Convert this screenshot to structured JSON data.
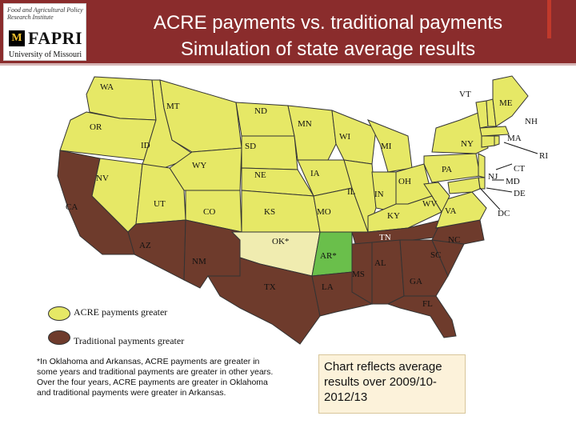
{
  "header": {
    "logo": {
      "institute": "Food and Agricultural Policy Research Institute",
      "mark": "M",
      "name": "FAPRI",
      "university": "University of Missouri"
    },
    "title_line1": "ACRE payments vs. traditional payments",
    "title_line2": "Simulation of state average results"
  },
  "map": {
    "colors": {
      "acre_greater": "#e6e866",
      "traditional_greater": "#6e3b2c",
      "oklahoma": "#f0ecb0",
      "arkansas": "#6abf4b"
    },
    "states": [
      {
        "abbr": "WA",
        "result": "acre"
      },
      {
        "abbr": "OR",
        "result": "acre"
      },
      {
        "abbr": "CA",
        "result": "traditional"
      },
      {
        "abbr": "NV",
        "result": "acre"
      },
      {
        "abbr": "ID",
        "result": "acre"
      },
      {
        "abbr": "MT",
        "result": "acre"
      },
      {
        "abbr": "WY",
        "result": "acre"
      },
      {
        "abbr": "UT",
        "result": "acre"
      },
      {
        "abbr": "CO",
        "result": "acre"
      },
      {
        "abbr": "AZ",
        "result": "traditional"
      },
      {
        "abbr": "NM",
        "result": "traditional"
      },
      {
        "abbr": "ND",
        "result": "acre"
      },
      {
        "abbr": "SD",
        "result": "acre"
      },
      {
        "abbr": "NE",
        "result": "acre"
      },
      {
        "abbr": "KS",
        "result": "acre"
      },
      {
        "abbr": "OK*",
        "result": "mixed"
      },
      {
        "abbr": "TX",
        "result": "traditional"
      },
      {
        "abbr": "MN",
        "result": "acre"
      },
      {
        "abbr": "IA",
        "result": "acre"
      },
      {
        "abbr": "MO",
        "result": "acre"
      },
      {
        "abbr": "AR*",
        "result": "mixed"
      },
      {
        "abbr": "LA",
        "result": "traditional"
      },
      {
        "abbr": "WI",
        "result": "acre"
      },
      {
        "abbr": "IL",
        "result": "acre"
      },
      {
        "abbr": "MI",
        "result": "acre"
      },
      {
        "abbr": "IN",
        "result": "acre"
      },
      {
        "abbr": "OH",
        "result": "acre"
      },
      {
        "abbr": "KY",
        "result": "acre"
      },
      {
        "abbr": "TN",
        "result": "traditional"
      },
      {
        "abbr": "MS",
        "result": "traditional"
      },
      {
        "abbr": "AL",
        "result": "traditional"
      },
      {
        "abbr": "GA",
        "result": "traditional"
      },
      {
        "abbr": "FL",
        "result": "traditional"
      },
      {
        "abbr": "SC",
        "result": "traditional"
      },
      {
        "abbr": "NC",
        "result": "traditional"
      },
      {
        "abbr": "VA",
        "result": "acre"
      },
      {
        "abbr": "WV",
        "result": "acre"
      },
      {
        "abbr": "PA",
        "result": "acre"
      },
      {
        "abbr": "NY",
        "result": "acre"
      },
      {
        "abbr": "VT",
        "result": "acre"
      },
      {
        "abbr": "NH",
        "result": "acre"
      },
      {
        "abbr": "ME",
        "result": "acre"
      },
      {
        "abbr": "MA",
        "result": "acre"
      },
      {
        "abbr": "RI",
        "result": "acre"
      },
      {
        "abbr": "CT",
        "result": "acre"
      },
      {
        "abbr": "NJ",
        "result": "acre"
      },
      {
        "abbr": "DE",
        "result": "acre"
      },
      {
        "abbr": "MD",
        "result": "acre"
      },
      {
        "abbr": "DC",
        "result": "acre"
      }
    ]
  },
  "legend": {
    "acre_label": "ACRE payments greater",
    "traditional_label": "Traditional payments greater"
  },
  "footnote": "*In Oklahoma and Arkansas, ACRE payments are greater in some years and traditional payments are greater in other years. Over the four years, ACRE payments are greater in Oklahoma and traditional payments were greater in Arkansas.",
  "callout": "Chart reflects average results over 2009/10-2012/13"
}
